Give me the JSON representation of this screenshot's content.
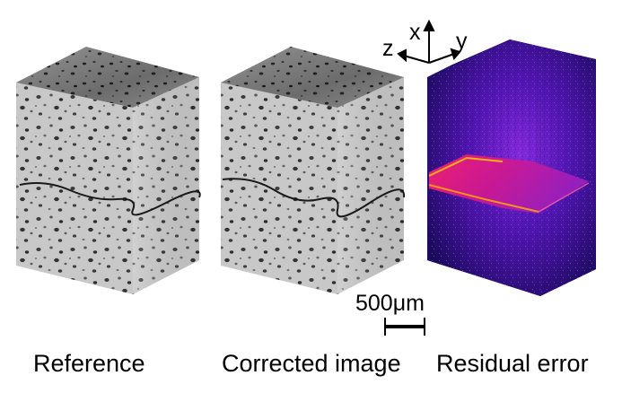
{
  "panels": [
    {
      "id": "reference",
      "caption": "Reference"
    },
    {
      "id": "corrected",
      "caption": "Corrected image"
    },
    {
      "id": "residual",
      "caption": "Residual error"
    }
  ],
  "axes": {
    "x_label": "x",
    "y_label": "y",
    "z_label": "z"
  },
  "scale_bar": {
    "label": "500μm"
  },
  "colors": {
    "background": "#ffffff",
    "volume_light": "#d0d0d0",
    "volume_dark": "#2a2a2a",
    "residual_background": "#1a0a5a",
    "residual_glow": "#8a2be2",
    "residual_crack": "#ff1080",
    "residual_hot": "#ffcc00"
  },
  "icons": [
    "axis-arrows-icon",
    "scale-bar-icon"
  ]
}
